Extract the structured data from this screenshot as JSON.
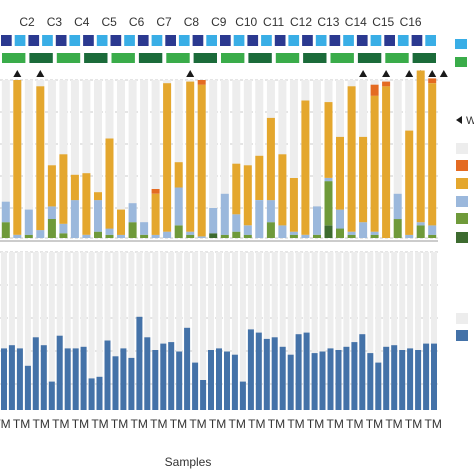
{
  "chart_data": {
    "type": "bar",
    "xlabel": "Samples",
    "sample_groups": [
      "C2",
      "C3",
      "C4",
      "C5",
      "C6",
      "C7",
      "C8",
      "C9",
      "C10",
      "C11",
      "C12",
      "C13",
      "C14",
      "C15",
      "C16"
    ],
    "bar_label": "TM",
    "colors": {
      "background_bar": "#ededed",
      "yellow": "#e4a72e",
      "orange": "#e46b22",
      "light_blue": "#9bb8dc",
      "green": "#6f9a3a",
      "dark_green": "#3d6b2f",
      "blue": "#4472a8",
      "navy": "#2b3990",
      "cyan": "#39aee6",
      "strip_green": "#3aac4a",
      "strip_dark_green": "#1b6b3a",
      "marker": "#1a1a1a",
      "grid": "#bbbbbb"
    },
    "top_panel": {
      "ylim": [
        0,
        100
      ],
      "series": [
        {
          "color_key": "dark_green",
          "values": [
            0,
            0,
            0,
            0,
            0,
            0,
            0,
            0,
            0,
            0,
            0,
            0,
            0,
            0,
            0,
            0,
            0,
            0,
            3,
            0,
            0,
            0,
            0,
            0,
            0,
            0,
            0,
            0,
            8,
            0,
            0,
            0,
            0,
            0,
            0,
            0,
            0,
            0
          ]
        },
        {
          "color_key": "green",
          "values": [
            10,
            0,
            2,
            0,
            12,
            3,
            0,
            0,
            4,
            2,
            0,
            10,
            2,
            0,
            0,
            8,
            2,
            0,
            0,
            2,
            4,
            2,
            0,
            10,
            0,
            2,
            0,
            2,
            28,
            6,
            2,
            0,
            2,
            0,
            12,
            0,
            8,
            2
          ]
        },
        {
          "color_key": "light_blue",
          "values": [
            13,
            2,
            16,
            5,
            8,
            6,
            24,
            2,
            20,
            4,
            2,
            12,
            8,
            2,
            4,
            24,
            2,
            1,
            16,
            26,
            11,
            6,
            24,
            14,
            8,
            2,
            2,
            18,
            2,
            12,
            2,
            10,
            2,
            0,
            16,
            2,
            2,
            6
          ]
        },
        {
          "color_key": "yellow",
          "values": [
            0,
            98,
            0,
            91,
            26,
            44,
            16,
            39,
            5,
            57,
            16,
            0,
            0,
            26,
            94,
            16,
            95,
            96,
            0,
            0,
            32,
            38,
            28,
            52,
            45,
            34,
            85,
            0,
            48,
            46,
            92,
            54,
            86,
            96,
            0,
            66,
            96,
            90
          ]
        },
        {
          "color_key": "orange",
          "values": [
            0,
            0,
            0,
            0,
            0,
            0,
            0,
            0,
            0,
            0,
            0,
            0,
            0,
            3,
            0,
            0,
            0,
            3,
            0,
            0,
            0,
            0,
            0,
            0,
            0,
            0,
            0,
            0,
            0,
            0,
            0,
            0,
            7,
            3,
            0,
            0,
            0,
            3
          ]
        }
      ],
      "markers": [
        1,
        3,
        16,
        31,
        33,
        35,
        36,
        37,
        38
      ]
    },
    "bottom_panel": {
      "ylim": [
        0,
        100
      ],
      "series": [
        {
          "color_key": "blue",
          "values": [
            39,
            41,
            39,
            28,
            46,
            41,
            18,
            47,
            39,
            39,
            40,
            20,
            21,
            44,
            34,
            39,
            33,
            59,
            46,
            38,
            42,
            43,
            37,
            52,
            30,
            19,
            38,
            39,
            37,
            35,
            18,
            51,
            49,
            45,
            46,
            40,
            35,
            48,
            49,
            36,
            37,
            39,
            38,
            40,
            43,
            48,
            36,
            30,
            40,
            41,
            38,
            39,
            38,
            42,
            42
          ]
        }
      ]
    },
    "strips": {
      "row1": [
        "navy",
        "cyan",
        "navy",
        "cyan",
        "navy",
        "cyan",
        "navy",
        "cyan",
        "navy",
        "cyan",
        "navy",
        "cyan",
        "navy",
        "cyan",
        "navy",
        "cyan",
        "navy",
        "cyan",
        "navy",
        "cyan",
        "navy",
        "cyan",
        "navy",
        "cyan",
        "navy",
        "cyan",
        "navy",
        "cyan",
        "navy",
        "cyan",
        "navy",
        "cyan"
      ],
      "row2": [
        "strip_green",
        "strip_dark_green",
        "strip_green",
        "strip_dark_green",
        "strip_green",
        "strip_dark_green",
        "strip_green",
        "strip_dark_green",
        "strip_green",
        "strip_dark_green",
        "strip_green",
        "strip_dark_green",
        "strip_green",
        "strip_dark_green",
        "strip_green",
        "strip_dark_green"
      ]
    },
    "legend_partial": {
      "letter": "W",
      "swatches": [
        "background_bar",
        "orange",
        "yellow",
        "light_blue",
        "green",
        "dark_green",
        "background_bar",
        "blue"
      ],
      "strip_swatches": [
        "cyan",
        "strip_green"
      ]
    }
  }
}
